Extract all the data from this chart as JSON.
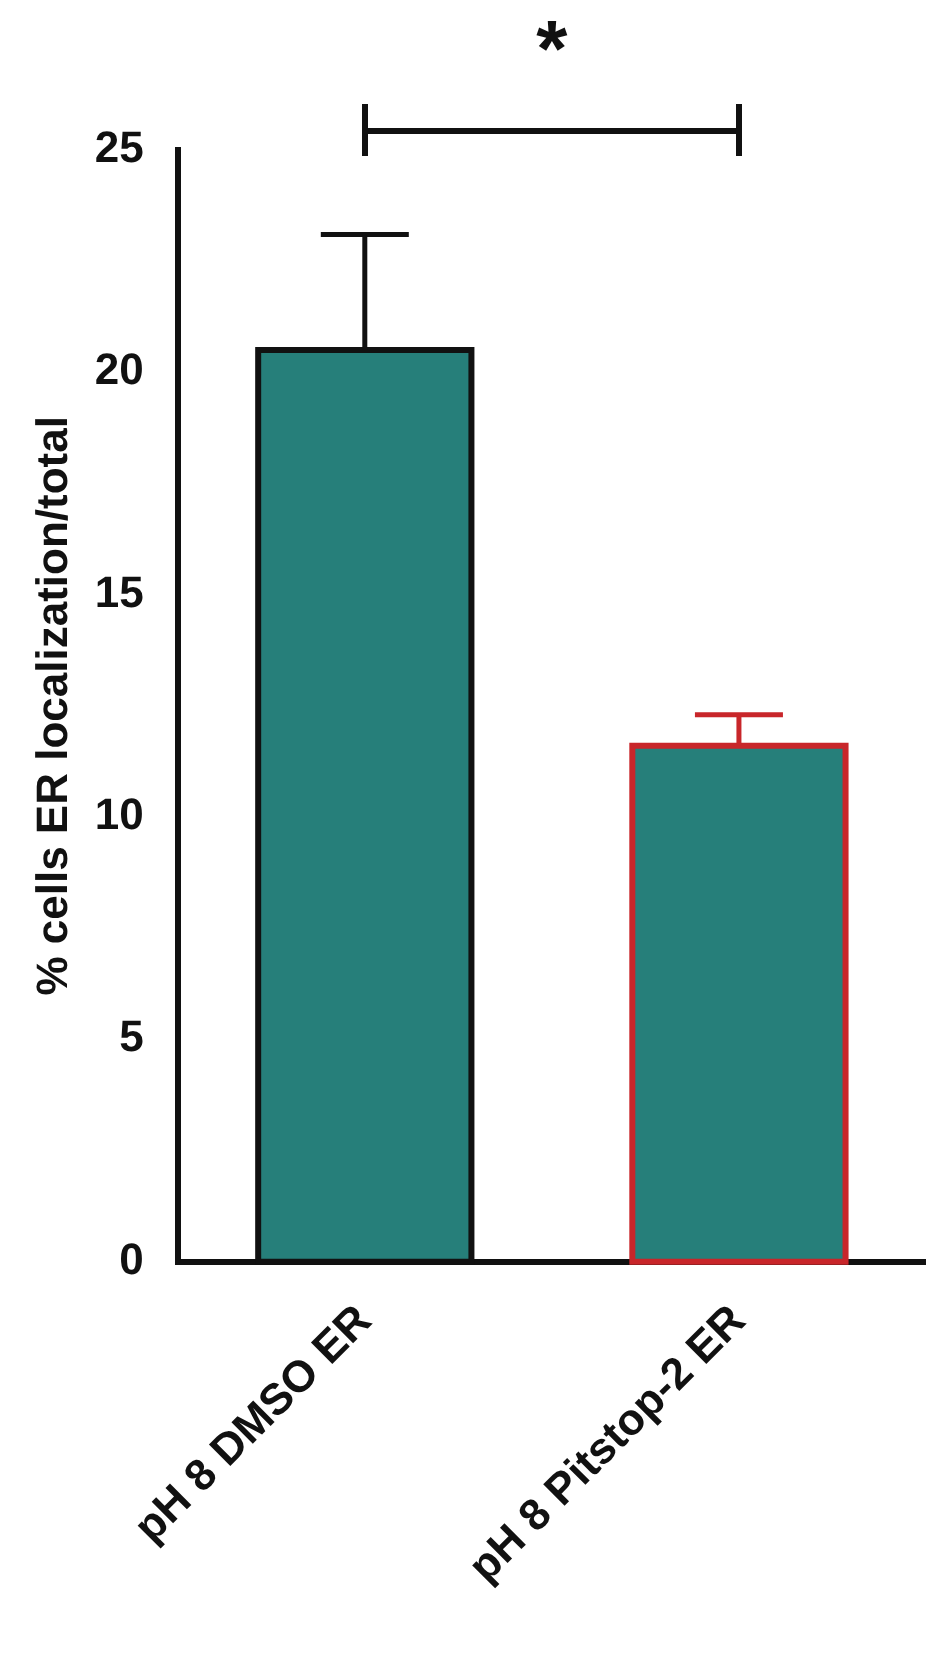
{
  "chart_data": {
    "type": "bar",
    "ylabel": "% cells ER localization/total",
    "categories": [
      "pH 8 DMSO ER",
      "pH 8 Pitstop-2 ER"
    ],
    "values": [
      20.5,
      11.6
    ],
    "colors": [
      "#267f7a",
      "#267f7a"
    ],
    "errors": [
      [
        20.5,
        23.1
      ],
      [
        11.6,
        12.3
      ]
    ],
    "ylim": [
      0,
      25
    ],
    "yticks": [
      0,
      5,
      10,
      15,
      20,
      25
    ],
    "annotations": [
      "*"
    ]
  }
}
